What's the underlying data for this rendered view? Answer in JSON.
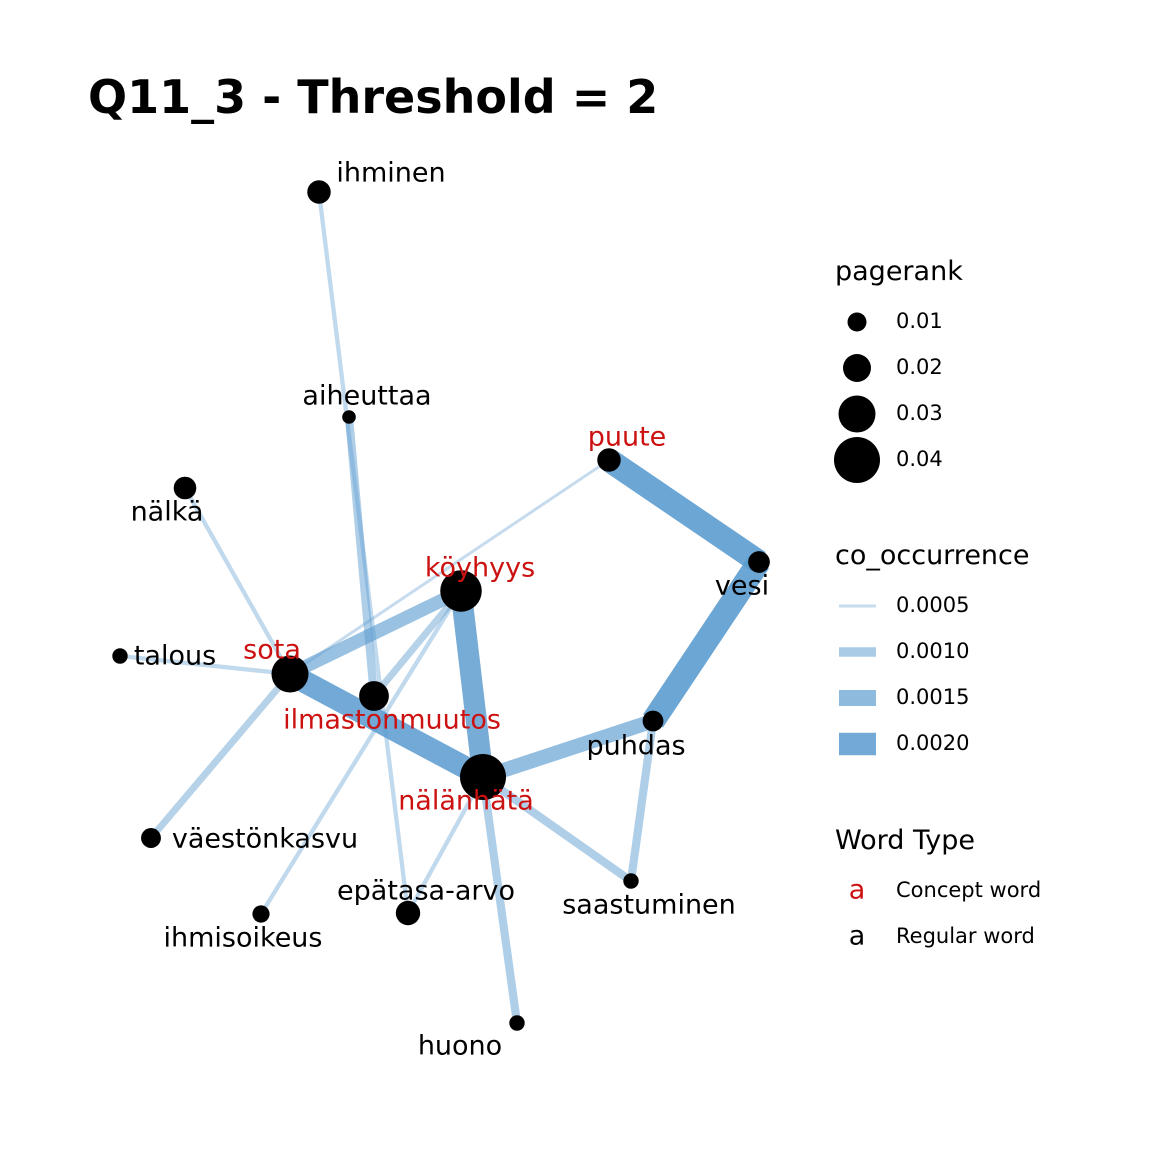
{
  "title": "Q11_3 - Threshold = 2",
  "colors": {
    "concept": "#cc1111",
    "regular": "#000000",
    "edge": "#5b9bcf",
    "node": "#000000"
  },
  "nodes": [
    {
      "id": "ihminen",
      "label": "ihminen",
      "type": "regular",
      "pagerank": 0.015
    },
    {
      "id": "aiheuttaa",
      "label": "aiheuttaa",
      "type": "regular",
      "pagerank": 0.004
    },
    {
      "id": "puute",
      "label": "puute",
      "type": "concept",
      "pagerank": 0.015
    },
    {
      "id": "nalka",
      "label": "nälkä",
      "type": "regular",
      "pagerank": 0.014
    },
    {
      "id": "vesi",
      "label": "vesi",
      "type": "regular",
      "pagerank": 0.013
    },
    {
      "id": "koyhyys",
      "label": "köyhyys",
      "type": "concept",
      "pagerank": 0.035
    },
    {
      "id": "talous",
      "label": "talous",
      "type": "regular",
      "pagerank": 0.006
    },
    {
      "id": "sota",
      "label": "sota",
      "type": "concept",
      "pagerank": 0.03
    },
    {
      "id": "ilmastonmuutos",
      "label": "ilmastonmuutos",
      "type": "concept",
      "pagerank": 0.022
    },
    {
      "id": "puhdas",
      "label": "puhdas",
      "type": "regular",
      "pagerank": 0.012
    },
    {
      "id": "nalanhata",
      "label": "nälänhätä",
      "type": "concept",
      "pagerank": 0.04
    },
    {
      "id": "vaestonkasvu",
      "label": "väestönkasvu",
      "type": "regular",
      "pagerank": 0.011
    },
    {
      "id": "saastuminen",
      "label": "saastuminen",
      "type": "regular",
      "pagerank": 0.006
    },
    {
      "id": "epatasa",
      "label": "epätasa-arvo",
      "type": "regular",
      "pagerank": 0.016
    },
    {
      "id": "ihmisoikeus",
      "label": "ihmisoikeus",
      "type": "regular",
      "pagerank": 0.008
    },
    {
      "id": "huono",
      "label": "huono",
      "type": "regular",
      "pagerank": 0.006
    }
  ],
  "edges": [
    {
      "from": "ihminen",
      "to": "epatasa",
      "co_occurrence": 0.0006
    },
    {
      "from": "aiheuttaa",
      "to": "ilmastonmuutos",
      "co_occurrence": 0.0009
    },
    {
      "from": "puute",
      "to": "vesi",
      "co_occurrence": 0.0021
    },
    {
      "from": "puute",
      "to": "sota",
      "co_occurrence": 0.0005
    },
    {
      "from": "vesi",
      "to": "puhdas",
      "co_occurrence": 0.0021
    },
    {
      "from": "nalka",
      "to": "sota",
      "co_occurrence": 0.0006
    },
    {
      "from": "talous",
      "to": "sota",
      "co_occurrence": 0.0006
    },
    {
      "from": "koyhyys",
      "to": "sota",
      "co_occurrence": 0.0013
    },
    {
      "from": "koyhyys",
      "to": "nalanhata",
      "co_occurrence": 0.0019
    },
    {
      "from": "koyhyys",
      "to": "ilmastonmuutos",
      "co_occurrence": 0.0008
    },
    {
      "from": "koyhyys",
      "to": "ihmisoikeus",
      "co_occurrence": 0.0006
    },
    {
      "from": "sota",
      "to": "nalanhata",
      "co_occurrence": 0.002
    },
    {
      "from": "sota",
      "to": "vaestonkasvu",
      "co_occurrence": 0.0008
    },
    {
      "from": "puhdas",
      "to": "nalanhata",
      "co_occurrence": 0.0014
    },
    {
      "from": "puhdas",
      "to": "saastuminen",
      "co_occurrence": 0.0009
    },
    {
      "from": "nalanhata",
      "to": "saastuminen",
      "co_occurrence": 0.0009
    },
    {
      "from": "nalanhata",
      "to": "huono",
      "co_occurrence": 0.0009
    },
    {
      "from": "nalanhata",
      "to": "epatasa",
      "co_occurrence": 0.0006
    }
  ],
  "legend": {
    "pagerank": {
      "title": "pagerank",
      "items": [
        {
          "value": 0.01,
          "label": "0.01"
        },
        {
          "value": 0.02,
          "label": "0.02"
        },
        {
          "value": 0.03,
          "label": "0.03"
        },
        {
          "value": 0.04,
          "label": "0.04"
        }
      ]
    },
    "co_occurrence": {
      "title": "co_occurrence",
      "items": [
        {
          "value": 0.0005,
          "label": "0.0005"
        },
        {
          "value": 0.001,
          "label": "0.0010"
        },
        {
          "value": 0.0015,
          "label": "0.0015"
        },
        {
          "value": 0.002,
          "label": "0.0020"
        }
      ]
    },
    "word_type": {
      "title": "Word Type",
      "items": [
        {
          "key": "concept",
          "glyph": "a",
          "label": "Concept word"
        },
        {
          "key": "regular",
          "glyph": "a",
          "label": "Regular word"
        }
      ]
    }
  }
}
